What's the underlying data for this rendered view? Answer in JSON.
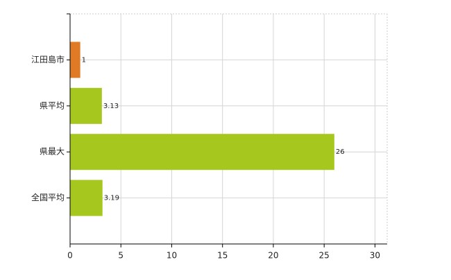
{
  "chart_data": {
    "type": "bar",
    "orientation": "horizontal",
    "categories": [
      "江田島市",
      "県平均",
      "県最大",
      "全国平均"
    ],
    "values": [
      1,
      3.13,
      26,
      3.19
    ],
    "colors": [
      "#e07a24",
      "#a6c81e",
      "#a6c81e",
      "#a6c81e"
    ],
    "xlim": [
      0,
      31.2
    ],
    "xticks": [
      0,
      5,
      10,
      15,
      20,
      25,
      30
    ],
    "grid": true
  }
}
